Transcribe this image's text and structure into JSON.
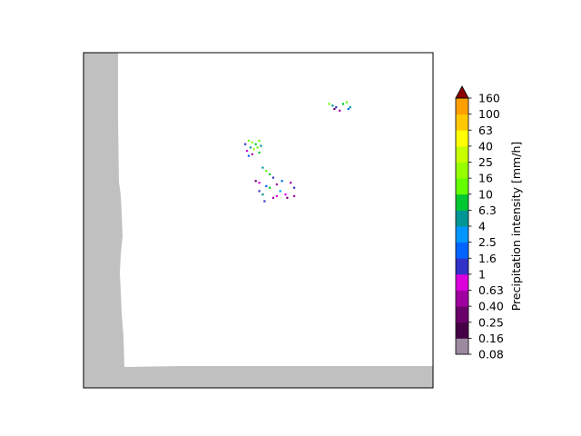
{
  "chart_data": {
    "type": "heatmap",
    "title": "",
    "colorbar": {
      "label": "Precipitation intensity [mm/h]",
      "ticks": [
        "0.08",
        "0.16",
        "0.25",
        "0.40",
        "0.63",
        "1",
        "1.6",
        "2.5",
        "4",
        "6.3",
        "10",
        "16",
        "25",
        "40",
        "63",
        "100",
        "160"
      ],
      "colors": [
        "#9c8aa0",
        "#460046",
        "#6a006a",
        "#a000a0",
        "#dc00dc",
        "#3232c8",
        "#0064ff",
        "#0096ff",
        "#009696",
        "#00c832",
        "#64ff00",
        "#96ff00",
        "#c8ff00",
        "#ffff00",
        "#ffc800",
        "#ffa000",
        "#ff7d00",
        "#e11900"
      ],
      "extend_color": "#8b0000",
      "extend": "max"
    },
    "nodata_color": "#c0c0c0",
    "precipitation_clusters": [
      {
        "location": "north-east",
        "max_intensity_mm_h": 10,
        "pixels": [
          [
            0.7,
            0.15,
            10
          ],
          [
            0.71,
            0.155,
            4
          ],
          [
            0.72,
            0.16,
            1
          ],
          [
            0.74,
            0.15,
            6.3
          ],
          [
            0.75,
            0.145,
            10
          ],
          [
            0.76,
            0.16,
            4
          ],
          [
            0.73,
            0.17,
            0.4
          ],
          [
            0.755,
            0.165,
            1.6
          ],
          [
            0.715,
            0.165,
            0.25
          ]
        ]
      },
      {
        "location": "center-north",
        "max_intensity_mm_h": 16,
        "pixels": [
          [
            0.47,
            0.26,
            10
          ],
          [
            0.48,
            0.265,
            16
          ],
          [
            0.49,
            0.27,
            6.3
          ],
          [
            0.5,
            0.26,
            10
          ],
          [
            0.475,
            0.28,
            4
          ],
          [
            0.485,
            0.285,
            16
          ],
          [
            0.495,
            0.28,
            10
          ],
          [
            0.505,
            0.275,
            4
          ],
          [
            0.46,
            0.27,
            1
          ],
          [
            0.465,
            0.29,
            0.63
          ],
          [
            0.5,
            0.295,
            6.3
          ],
          [
            0.48,
            0.3,
            0.4
          ],
          [
            0.47,
            0.305,
            1.6
          ]
        ]
      },
      {
        "location": "center",
        "max_intensity_mm_h": 10,
        "pixels": [
          [
            0.51,
            0.34,
            4
          ],
          [
            0.52,
            0.35,
            10
          ],
          [
            0.53,
            0.36,
            6.3
          ],
          [
            0.54,
            0.37,
            1
          ],
          [
            0.5,
            0.385,
            0.63
          ],
          [
            0.49,
            0.38,
            0.25
          ],
          [
            0.52,
            0.395,
            1.6
          ],
          [
            0.53,
            0.4,
            6.3
          ],
          [
            0.55,
            0.39,
            0.4
          ],
          [
            0.56,
            0.41,
            2.5
          ],
          [
            0.575,
            0.42,
            0.63
          ],
          [
            0.6,
            0.4,
            1
          ],
          [
            0.59,
            0.385,
            0.4
          ],
          [
            0.58,
            0.43,
            0.25
          ],
          [
            0.51,
            0.42,
            4
          ],
          [
            0.5,
            0.41,
            1
          ],
          [
            0.55,
            0.425,
            0.63
          ],
          [
            0.565,
            0.38,
            1.6
          ],
          [
            0.54,
            0.43,
            0.4
          ],
          [
            0.515,
            0.44,
            1
          ],
          [
            0.6,
            0.425,
            0.4
          ]
        ]
      }
    ]
  }
}
